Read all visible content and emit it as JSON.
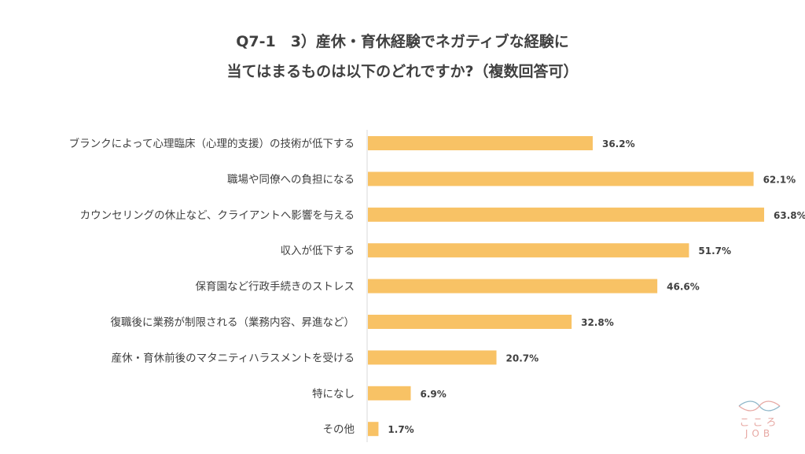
{
  "title": {
    "line1": "Q7-1　3）産休・育休経験でネガティブな経験に",
    "line2": "当てはまるものは以下のどれですか?（複数回答可）"
  },
  "chart_data": {
    "type": "bar",
    "orientation": "horizontal",
    "categories": [
      "ブランクによって心理臨床（心理的支援）の技術が低下する",
      "職場や同僚への負担になる",
      "カウンセリングの休止など、クライアントへ影響を与える",
      "収入が低下する",
      "保育園など行政手続きのストレス",
      "復職後に業務が制限される（業務内容、昇進など）",
      "産休・育休前後のマタニティハラスメントを受ける",
      "特になし",
      "その他"
    ],
    "values": [
      36.2,
      62.1,
      63.8,
      51.7,
      46.6,
      32.8,
      20.7,
      6.9,
      1.7
    ],
    "value_labels": [
      "36.2%",
      "62.1%",
      "63.8%",
      "51.7%",
      "46.6%",
      "32.8%",
      "20.7%",
      "6.9%",
      "1.7%"
    ],
    "bar_color": "#f8c265",
    "grid": false,
    "legend": "none"
  },
  "logo": {
    "text_line1": "こころ",
    "text_line2": "JOB",
    "color": "#e7a9a4",
    "accent_color": "#8fb7c9"
  }
}
